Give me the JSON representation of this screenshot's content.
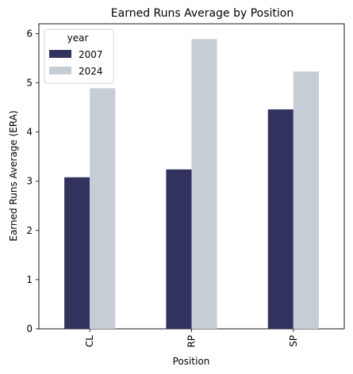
{
  "chart_data": {
    "type": "bar",
    "title": "Earned Runs Average by Position",
    "xlabel": "Position",
    "ylabel": "Earned Runs Average (ERA)",
    "categories": [
      "CL",
      "RP",
      "SP"
    ],
    "series": [
      {
        "name": "2007",
        "values": [
          3.08,
          3.24,
          4.46
        ],
        "color": "#32325f"
      },
      {
        "name": "2024",
        "values": [
          4.89,
          5.89,
          5.23
        ],
        "color": "#c6cdd5"
      }
    ],
    "ylim": [
      0,
      6.2
    ],
    "yticks": [
      0,
      1,
      2,
      3,
      4,
      5,
      6
    ],
    "grid": false,
    "legend": {
      "title": "year",
      "position": "top-left"
    }
  }
}
